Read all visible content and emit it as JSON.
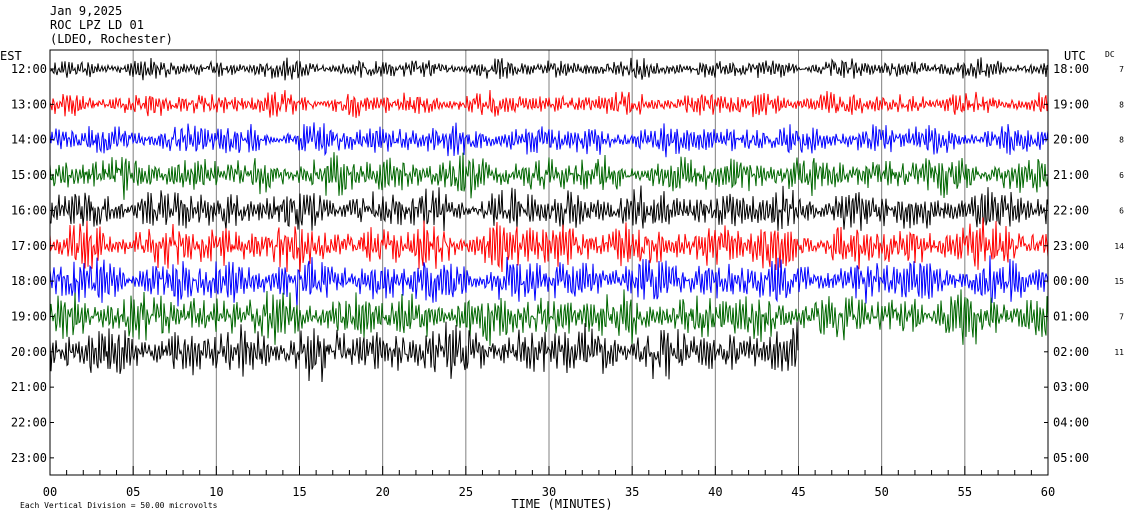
{
  "header": {
    "date": "Jan 9,2025",
    "station": "ROC LPZ LD 01",
    "network": "(LDEO, Rochester)"
  },
  "chart_data": {
    "type": "line",
    "title": "ROC LPZ LD 01",
    "left_axis_title": "EST",
    "right_axis_title": "UTC",
    "dc_title": "DC",
    "xlabel": "TIME (MINUTES)",
    "x_ticks": [
      "00",
      "05",
      "10",
      "15",
      "20",
      "25",
      "30",
      "35",
      "40",
      "45",
      "50",
      "55",
      "60"
    ],
    "xlim": [
      0,
      60
    ],
    "rows_est": [
      "12:00",
      "13:00",
      "14:00",
      "15:00",
      "16:00",
      "17:00",
      "18:00",
      "19:00",
      "20:00",
      "21:00",
      "22:00",
      "23:00"
    ],
    "rows_utc": [
      "18:00",
      "19:00",
      "20:00",
      "21:00",
      "22:00",
      "23:00",
      "00:00",
      "01:00",
      "02:00",
      "03:00",
      "04:00",
      "05:00"
    ],
    "dc_values": [
      "7",
      "8",
      "8",
      "6",
      "6",
      "14",
      "15",
      "7",
      "11"
    ],
    "trace_colors": [
      "#000000",
      "#ff0000",
      "#0000ff",
      "#006600"
    ],
    "trace_amplitude_scale": [
      1.2,
      1.5,
      1.9,
      2.4,
      2.6,
      2.8,
      2.8,
      3.0,
      3.2
    ],
    "last_trace_end_minute": 45,
    "grid": true,
    "vertical_division_note": "Each Vertical Division =   50.00 microvolts"
  }
}
